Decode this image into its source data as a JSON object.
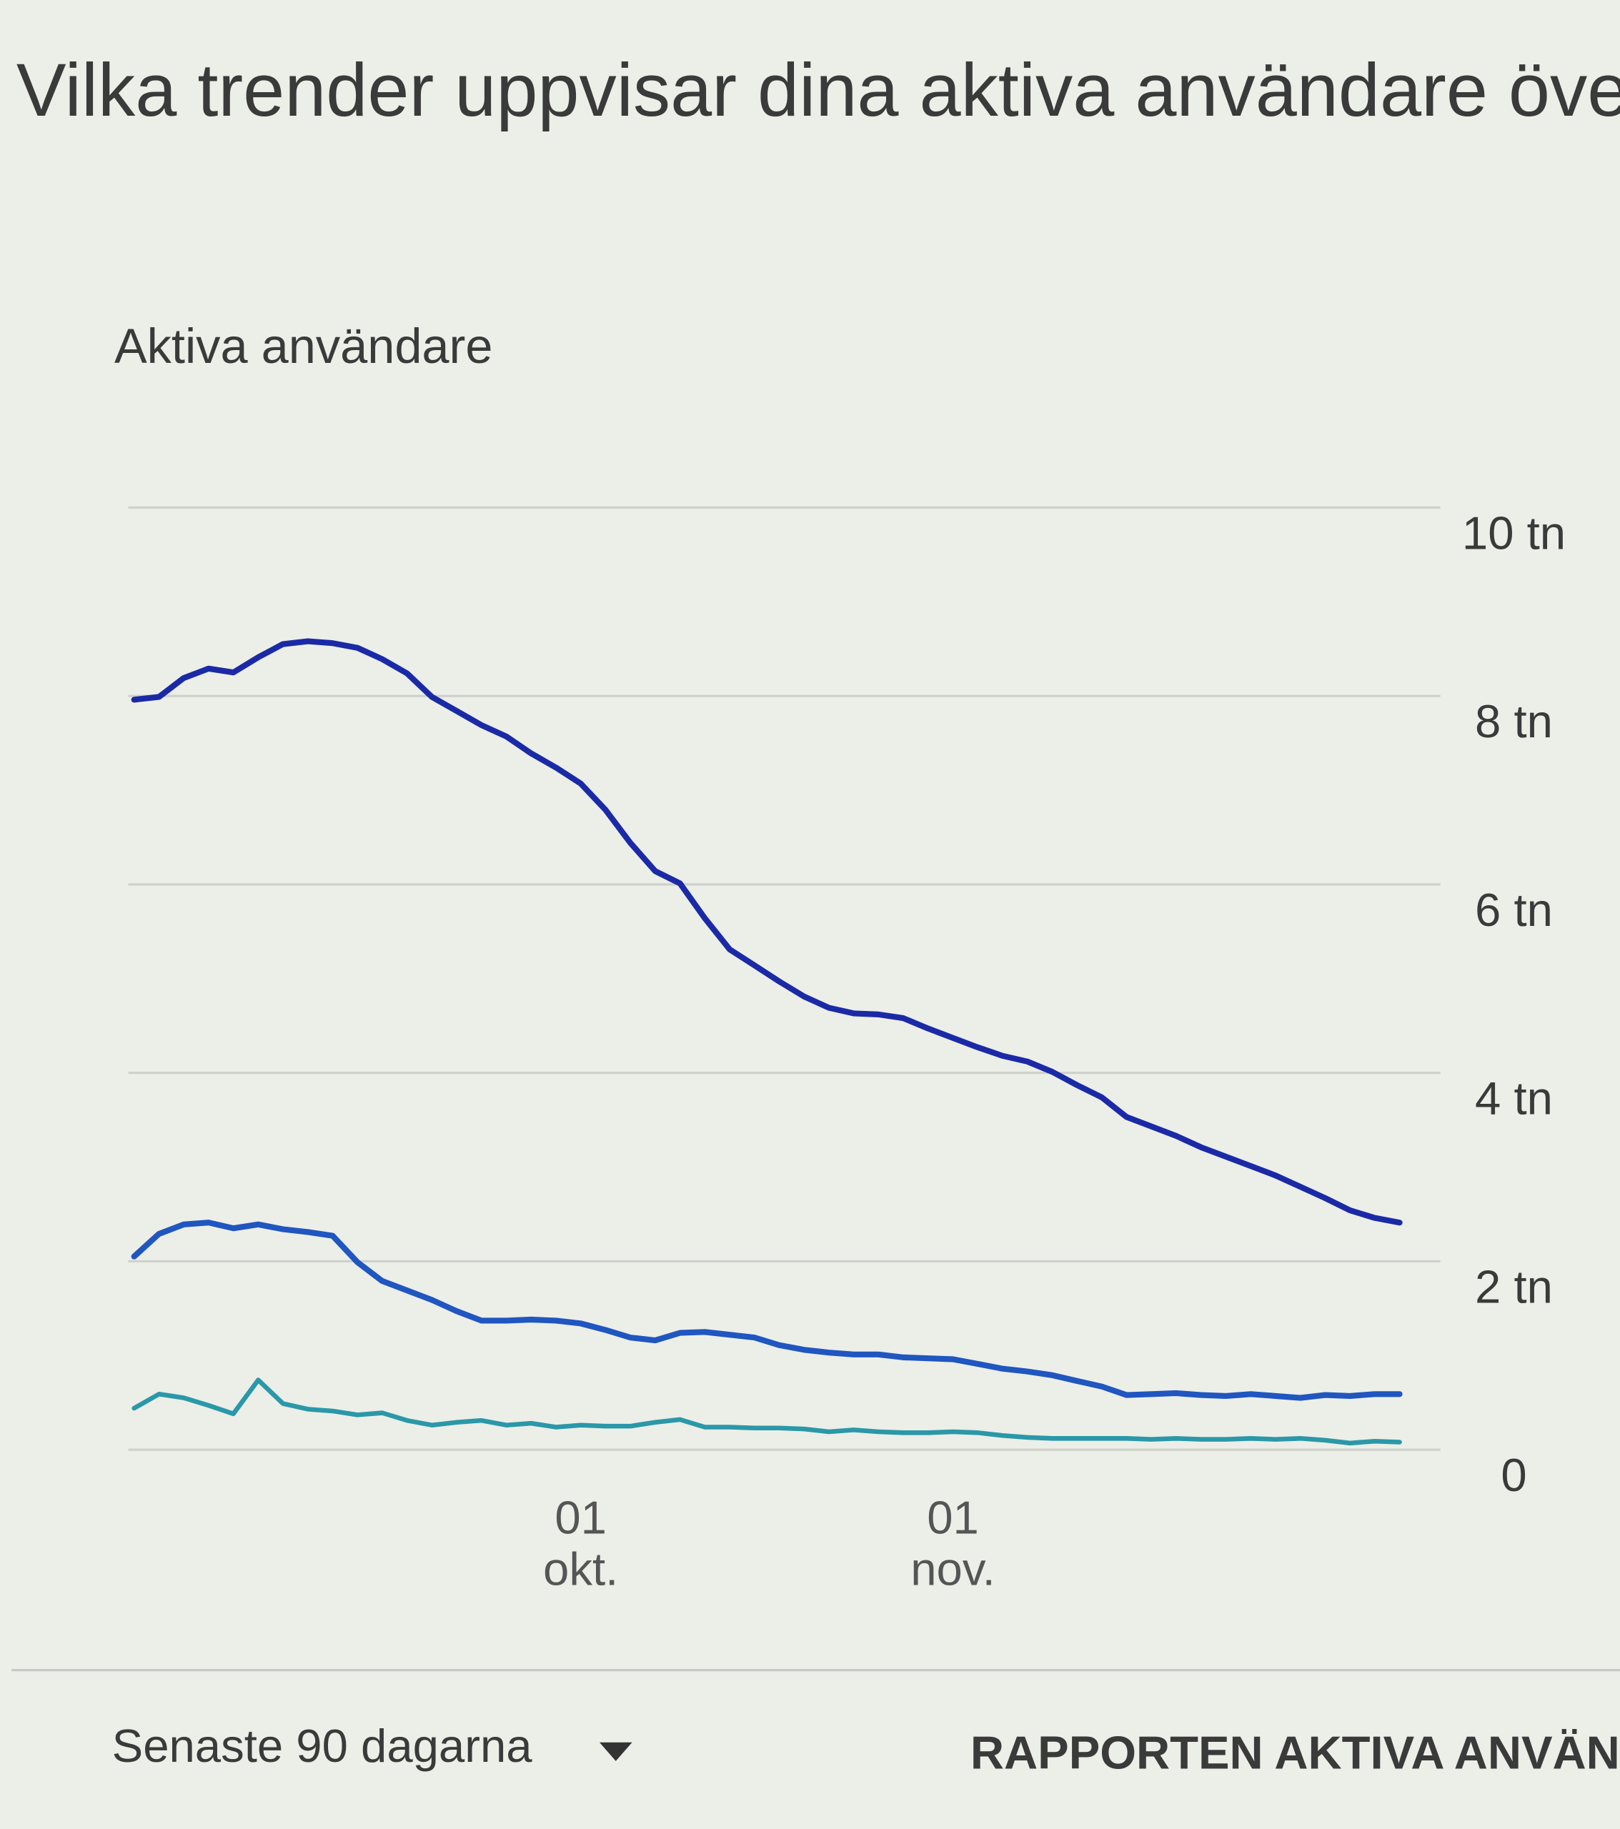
{
  "chart_data": {
    "type": "line",
    "title": "Vilka trender uppvisar dina aktiva användare över",
    "ylabel": "Aktiva användare",
    "categories": [
      null,
      null,
      null,
      null,
      null,
      null,
      null,
      null,
      null,
      null,
      null,
      null,
      null,
      null,
      null,
      null,
      null,
      null,
      "01\nokt.",
      null,
      null,
      null,
      null,
      null,
      null,
      null,
      null,
      null,
      null,
      null,
      null,
      null,
      null,
      "01\nnov.",
      null,
      null,
      null,
      null,
      null,
      null,
      null,
      null,
      null,
      null,
      null,
      null,
      null,
      null,
      null,
      null,
      null,
      null
    ],
    "series": [
      {
        "color": "#1a2aa6",
        "values": [
          8.27,
          8.3,
          8.5,
          8.6,
          8.56,
          8.72,
          8.86,
          8.89,
          8.87,
          8.82,
          8.7,
          8.55,
          8.3,
          8.15,
          8.0,
          7.88,
          7.7,
          7.55,
          7.38,
          7.1,
          6.75,
          6.45,
          6.32,
          5.95,
          5.62,
          5.45,
          5.28,
          5.12,
          5.0,
          4.94,
          4.93,
          4.89,
          4.78,
          4.68,
          4.58,
          4.49,
          4.43,
          4.32,
          4.18,
          4.05,
          3.84,
          3.74,
          3.64,
          3.52,
          3.42,
          3.32,
          3.22,
          3.1,
          2.98,
          2.85,
          2.77,
          2.72
        ]
      },
      {
        "color": "#1f56c0",
        "values": [
          2.36,
          2.6,
          2.7,
          2.72,
          2.66,
          2.7,
          2.65,
          2.62,
          2.58,
          2.3,
          2.1,
          2.0,
          1.9,
          1.78,
          1.68,
          1.68,
          1.69,
          1.68,
          1.65,
          1.58,
          1.5,
          1.47,
          1.55,
          1.56,
          1.53,
          1.5,
          1.42,
          1.37,
          1.34,
          1.32,
          1.32,
          1.29,
          1.28,
          1.27,
          1.22,
          1.17,
          1.14,
          1.1,
          1.04,
          0.98,
          0.89,
          0.9,
          0.91,
          0.89,
          0.88,
          0.9,
          0.88,
          0.86,
          0.89,
          0.88,
          0.9,
          0.9
        ]
      },
      {
        "color": "#2a98a8",
        "values": [
          0.75,
          0.9,
          0.86,
          0.78,
          0.69,
          1.05,
          0.8,
          0.74,
          0.72,
          0.68,
          0.7,
          0.62,
          0.57,
          0.6,
          0.62,
          0.57,
          0.59,
          0.55,
          0.57,
          0.56,
          0.56,
          0.6,
          0.63,
          0.55,
          0.55,
          0.54,
          0.54,
          0.53,
          0.5,
          0.52,
          0.5,
          0.49,
          0.49,
          0.5,
          0.49,
          0.46,
          0.44,
          0.43,
          0.43,
          0.43,
          0.43,
          0.42,
          0.43,
          0.42,
          0.42,
          0.43,
          0.42,
          0.43,
          0.41,
          0.38,
          0.4,
          0.39
        ]
      }
    ],
    "ylim": [
      0,
      10
    ],
    "yticks": [
      0,
      {
        "value": 2,
        "label": "2 tn"
      },
      {
        "value": 4,
        "label": "4 tn"
      },
      {
        "value": 6,
        "label": "6 tn"
      },
      {
        "value": 8,
        "label": "8 tn"
      },
      {
        "value": 10,
        "label": "10 tn"
      }
    ],
    "grid": true
  },
  "footer": {
    "range": "Senaste 90 dagarna",
    "link": "RAPPORTEN AKTIVA ANVÄN"
  }
}
